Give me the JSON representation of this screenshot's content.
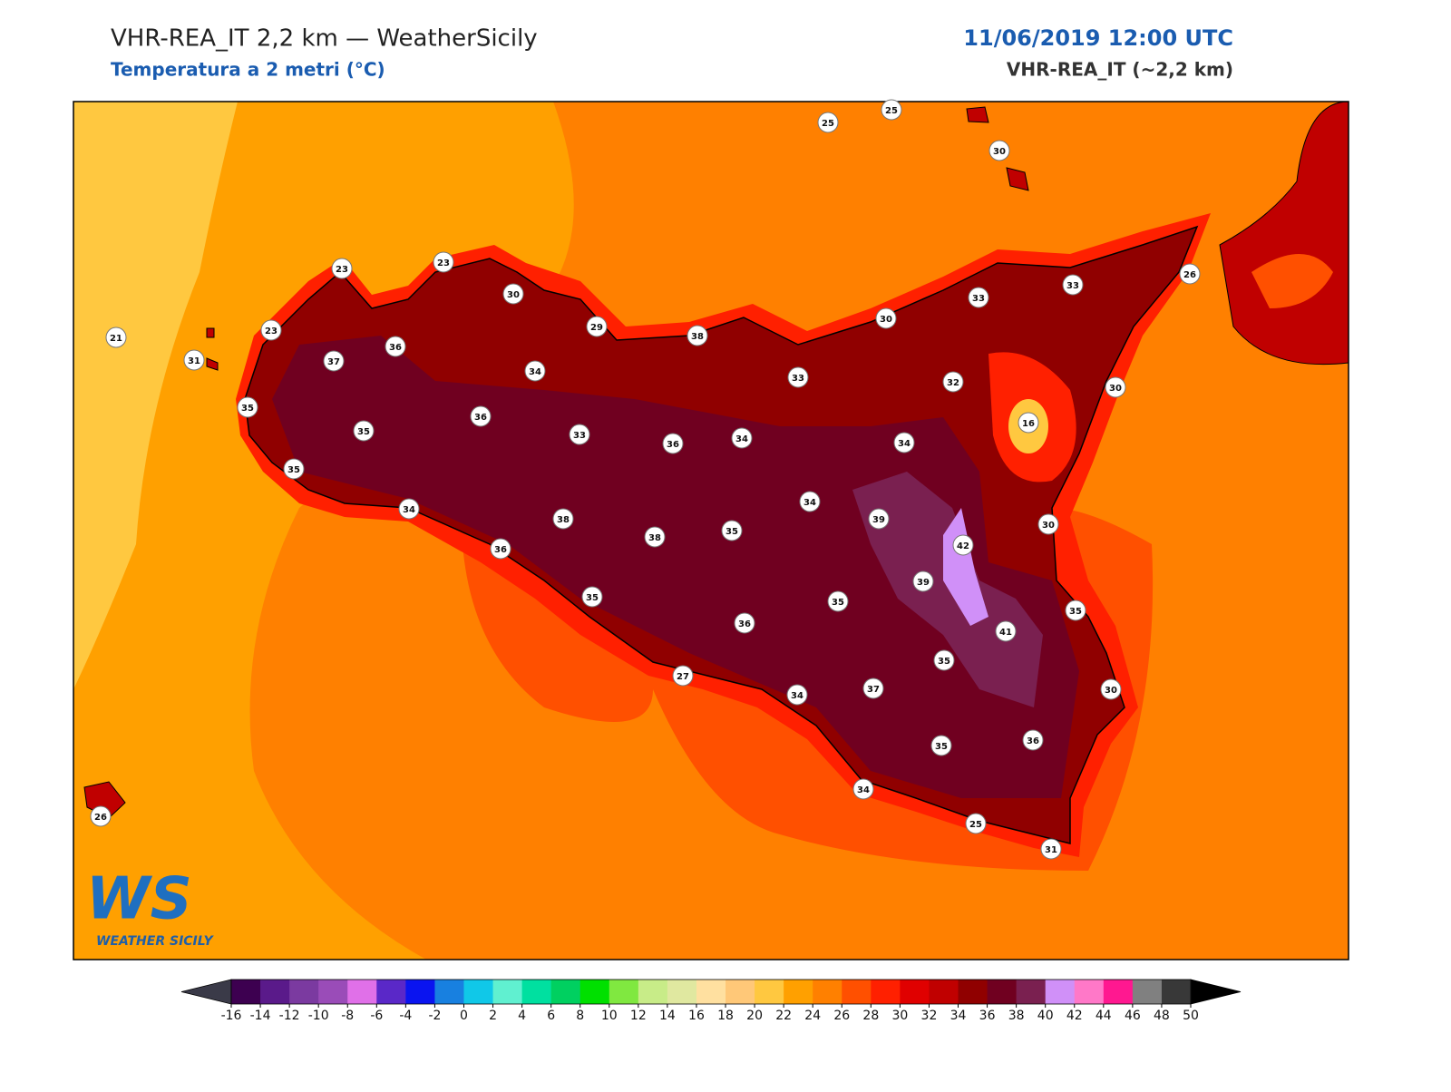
{
  "header": {
    "title": "VHR-REA_IT 2,2 km — WeatherSicily",
    "subtitle": "Temperatura a 2 metri (°C)",
    "datetime": "11/06/2019 12:00 UTC",
    "model": "VHR-REA_IT (~2,2 km)"
  },
  "stations": [
    25,
    25,
    30,
    23,
    23,
    30,
    21,
    23,
    31,
    29,
    38,
    36,
    37,
    34,
    35,
    33,
    30,
    33,
    33,
    26,
    32,
    30,
    16,
    36,
    35,
    33,
    36,
    34,
    34,
    35,
    34,
    34,
    39,
    38,
    35,
    38,
    42,
    30,
    36,
    39,
    35,
    35,
    35,
    36,
    41,
    35,
    27,
    37,
    34,
    30,
    36,
    35,
    34,
    26,
    25,
    31
  ],
  "colorbar": {
    "ticks": [
      -16,
      -14,
      -12,
      -10,
      -8,
      -6,
      -4,
      -2,
      0,
      2,
      4,
      6,
      8,
      10,
      12,
      14,
      16,
      18,
      20,
      22,
      24,
      26,
      28,
      30,
      32,
      34,
      36,
      38,
      40,
      42,
      44,
      46,
      48,
      50
    ],
    "colors": [
      "#3d0050",
      "#5a1a8a",
      "#7b3aa0",
      "#9a4cb8",
      "#e070e8",
      "#5a28c8",
      "#0a14f0",
      "#1880e0",
      "#10c8e8",
      "#60f0d0",
      "#00e0a0",
      "#00d060",
      "#00e000",
      "#80e840",
      "#c8ec88",
      "#e0e8a0",
      "#ffe0a0",
      "#ffc878",
      "#ffc840",
      "#ffa000",
      "#ff8000",
      "#ff5000",
      "#ff2000",
      "#e00000",
      "#c00000",
      "#900000",
      "#700020",
      "#7a2050",
      "#d090f8",
      "#ff78c8",
      "#ff1890",
      "#808080",
      "#383838"
    ],
    "under_color": "#3a3a48",
    "over_color": "#000000"
  },
  "logo": {
    "mark": "WS",
    "text": "WEATHER SICILY"
  }
}
